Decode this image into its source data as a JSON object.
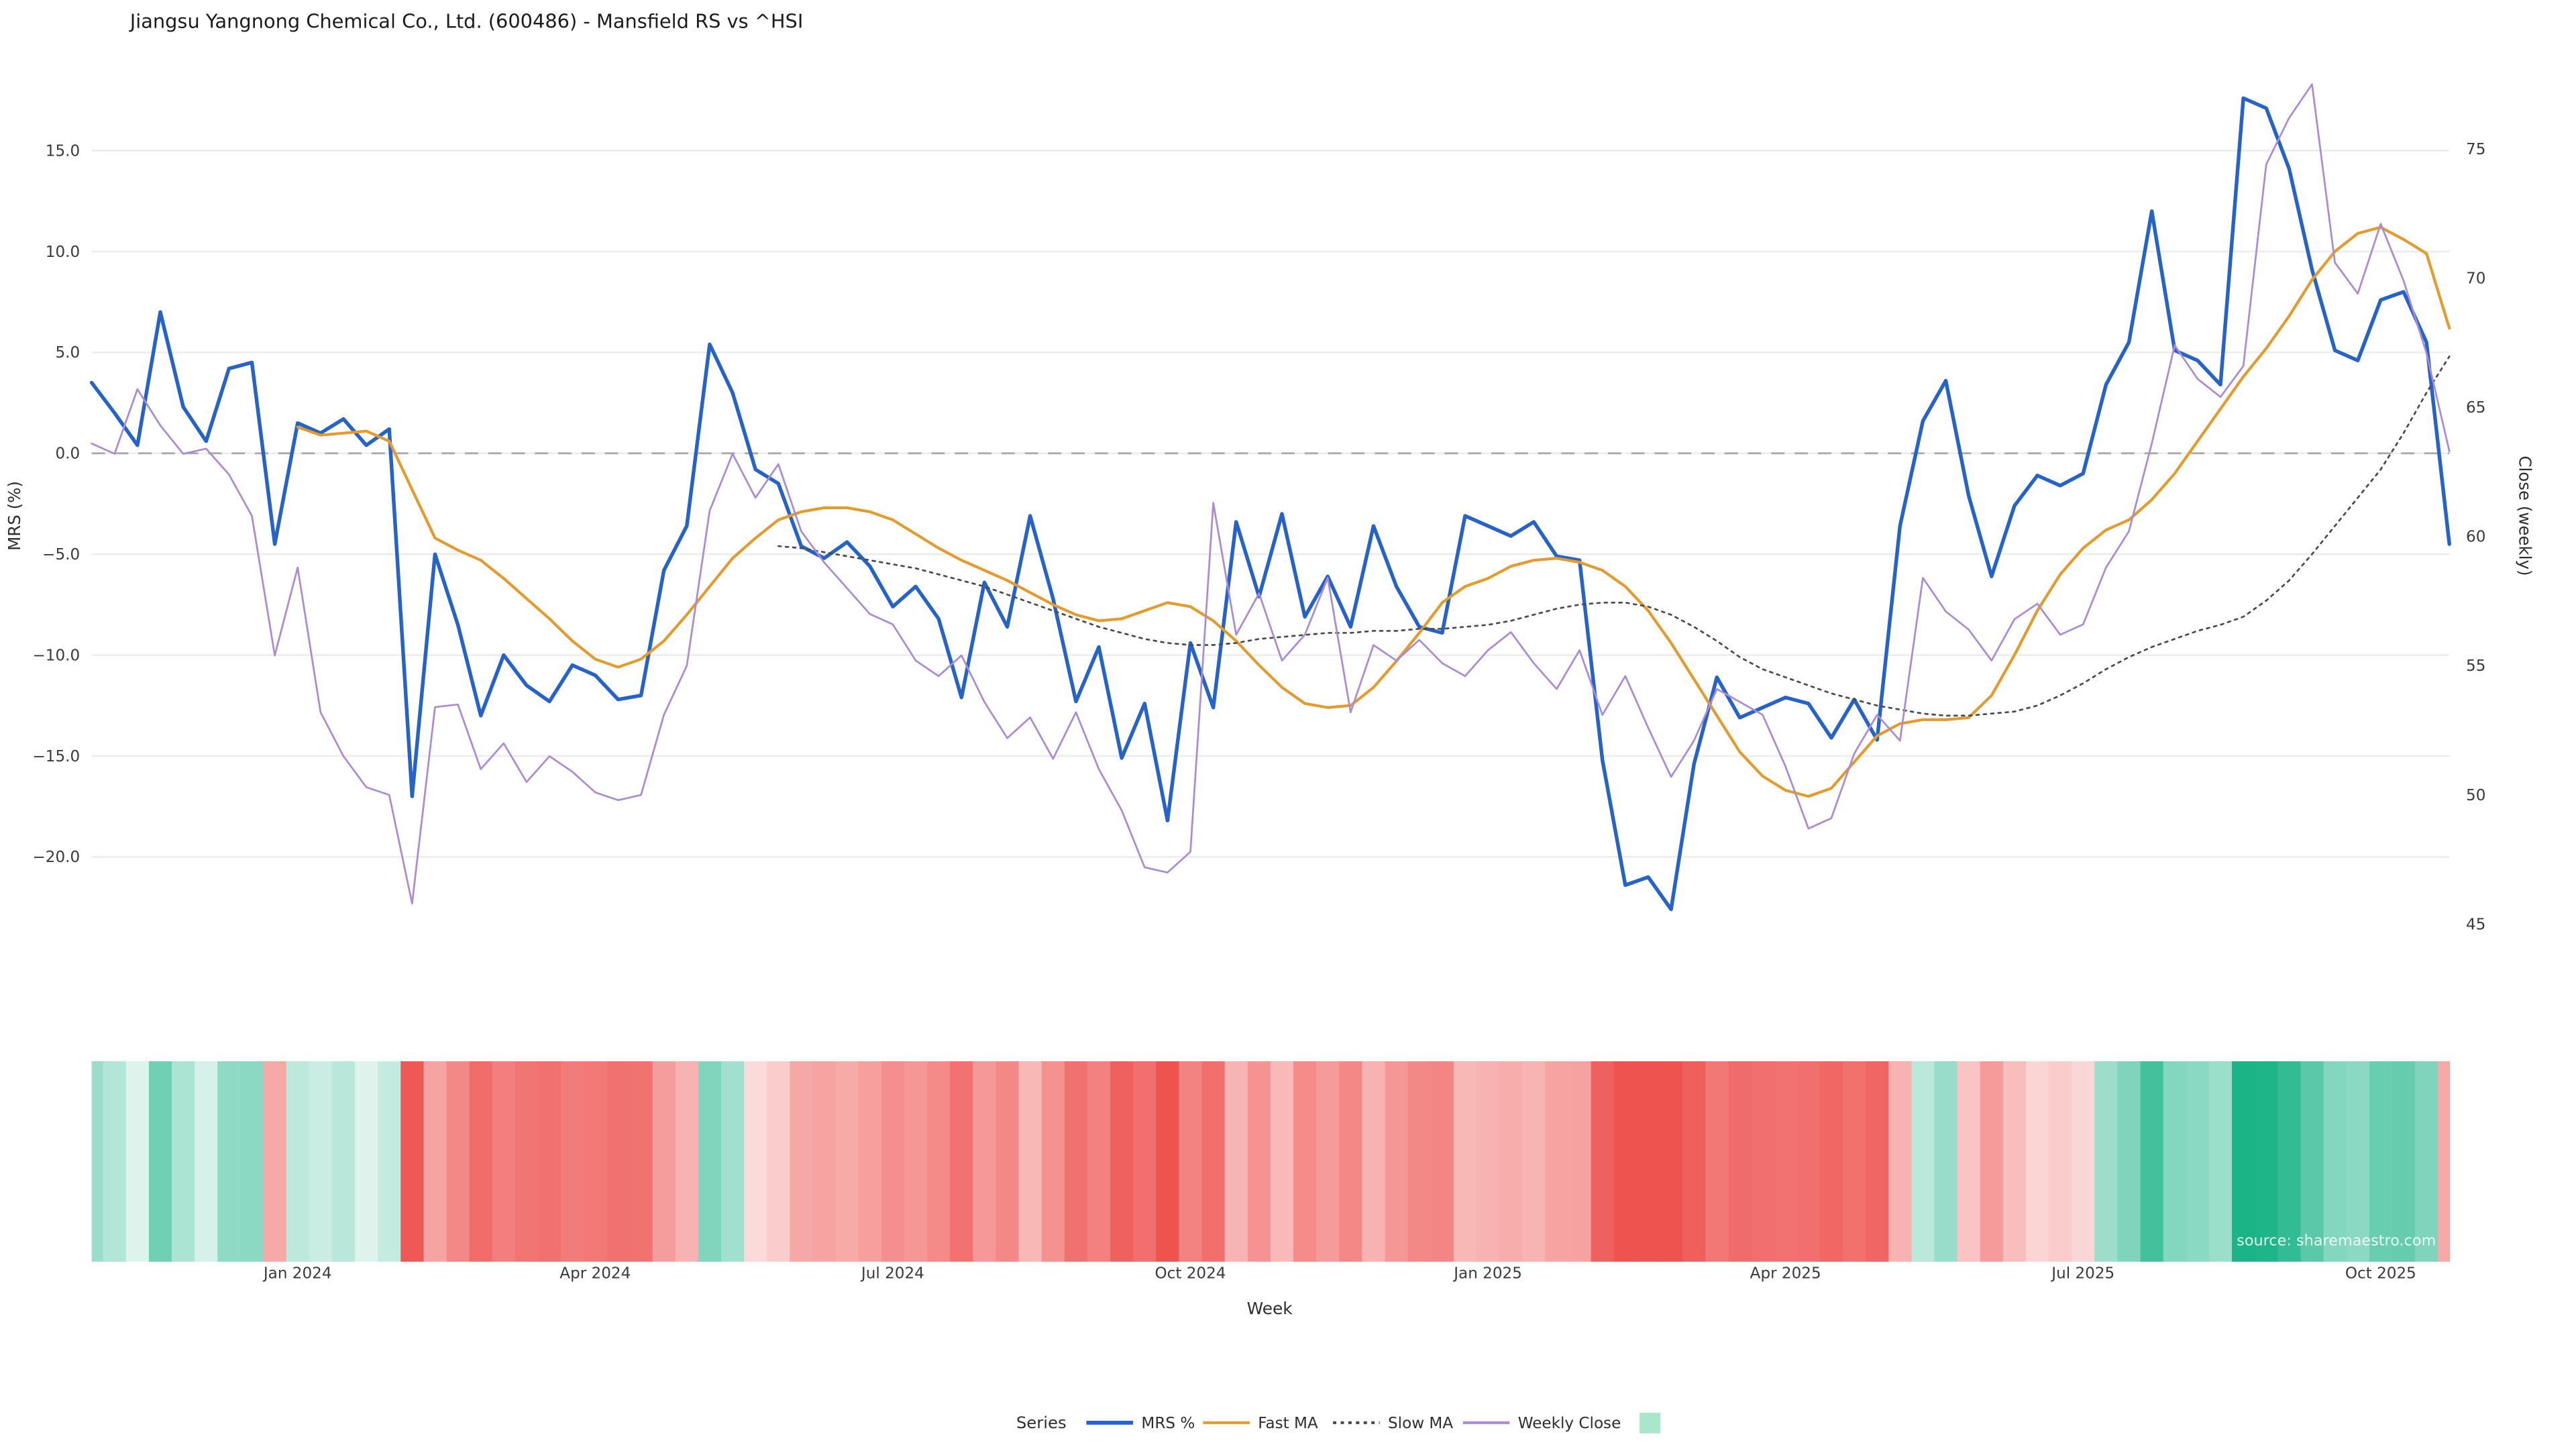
{
  "title": "Jiangsu Yangnong Chemical Co., Ltd. (600486) - Mansfield RS vs ^HSI",
  "source": "source: sharemaestro.com",
  "axes": {
    "x_label": "Week",
    "y_left_label": "MRS (%)",
    "y_right_label": "Close (weekly)",
    "y_left_ticks": [
      {
        "value": 15.0,
        "label": "15.0"
      },
      {
        "value": 10.0,
        "label": "10.0"
      },
      {
        "value": 5.0,
        "label": "5.0"
      },
      {
        "value": 0.0,
        "label": "0.0"
      },
      {
        "value": -5.0,
        "label": "−5.0"
      },
      {
        "value": -10.0,
        "label": "−10.0"
      },
      {
        "value": -15.0,
        "label": "−15.0"
      },
      {
        "value": -20.0,
        "label": "−20.0"
      }
    ],
    "y_right_ticks": [
      {
        "value": 75,
        "label": "75"
      },
      {
        "value": 70,
        "label": "70"
      },
      {
        "value": 65,
        "label": "65"
      },
      {
        "value": 60,
        "label": "60"
      },
      {
        "value": 55,
        "label": "55"
      },
      {
        "value": 50,
        "label": "50"
      },
      {
        "value": 45,
        "label": "45"
      }
    ],
    "x_ticks": [
      {
        "index": 9,
        "label": "Jan 2024"
      },
      {
        "index": 22,
        "label": "Apr 2024"
      },
      {
        "index": 35,
        "label": "Jul 2024"
      },
      {
        "index": 48,
        "label": "Oct 2024"
      },
      {
        "index": 61,
        "label": "Jan 2025"
      },
      {
        "index": 74,
        "label": "Apr 2025"
      },
      {
        "index": 87,
        "label": "Jul 2025"
      },
      {
        "index": 100,
        "label": "Oct 2025"
      }
    ]
  },
  "legend": {
    "title": "Series",
    "items": [
      {
        "label": "MRS %",
        "swatch": "line",
        "color": "#2563c9"
      },
      {
        "label": "Fast MA",
        "swatch": "line",
        "color": "#e39b2d"
      },
      {
        "label": "Slow MA",
        "swatch": "dotted-line",
        "color": "#4a4a4a"
      },
      {
        "label": "Weekly Close",
        "swatch": "line",
        "color": "#a98cd5"
      },
      {
        "label": "",
        "swatch": "square",
        "color": "#a9e6cb"
      }
    ]
  },
  "chart_data": {
    "type": "line",
    "x_unit": "week_index",
    "n_weeks": 104,
    "y_left_range": [
      -25,
      18.8
    ],
    "y_right_range": [
      43.7,
      77.9
    ],
    "zero_line": true,
    "grid": true,
    "legend_position": "bottom-center",
    "series": [
      {
        "name": "MRS %",
        "axis": "left",
        "color": "#2563c9",
        "style": "solid",
        "width": 2.2,
        "values": [
          3.5,
          2.0,
          0.4,
          7.0,
          2.3,
          0.6,
          4.2,
          4.5,
          -4.5,
          1.5,
          1.0,
          1.7,
          0.4,
          1.2,
          -17.0,
          -5.0,
          -8.5,
          -13.0,
          -10.0,
          -11.5,
          -12.3,
          -10.5,
          -11.0,
          -12.2,
          -12.0,
          -5.8,
          -3.6,
          5.4,
          3.0,
          -0.8,
          -1.5,
          -4.6,
          -5.2,
          -4.4,
          -5.6,
          -7.6,
          -6.6,
          -8.2,
          -12.1,
          -6.4,
          -8.6,
          -3.1,
          -7.2,
          -12.3,
          -9.6,
          -15.1,
          -12.4,
          -18.2,
          -9.4,
          -12.6,
          -3.4,
          -7.1,
          -3.0,
          -8.1,
          -6.1,
          -8.6,
          -3.6,
          -6.6,
          -8.6,
          -8.9,
          -3.1,
          -3.6,
          -4.1,
          -3.4,
          -5.1,
          -5.3,
          -15.2,
          -21.4,
          -21.0,
          -22.6,
          -15.4,
          -11.1,
          -13.1,
          -12.6,
          -12.1,
          -12.4,
          -14.1,
          -12.2,
          -14.2,
          -3.6,
          1.6,
          3.6,
          -2.1,
          -6.1,
          -2.6,
          -1.1,
          -1.6,
          -1.0,
          3.4,
          5.5,
          12.0,
          5.1,
          4.6,
          3.4,
          17.6,
          17.1,
          14.1,
          9.1,
          5.1,
          4.6,
          7.6,
          8.0,
          5.5,
          -4.5
        ]
      },
      {
        "name": "Fast MA",
        "axis": "left",
        "color": "#e39b2d",
        "style": "solid",
        "width": 1.7,
        "values": [
          null,
          null,
          null,
          null,
          null,
          null,
          null,
          null,
          null,
          1.3,
          0.9,
          1.0,
          1.1,
          0.6,
          -1.8,
          -4.2,
          -4.8,
          -5.3,
          -6.2,
          -7.2,
          -8.2,
          -9.3,
          -10.2,
          -10.6,
          -10.2,
          -9.3,
          -8.0,
          -6.6,
          -5.2,
          -4.2,
          -3.3,
          -2.9,
          -2.7,
          -2.7,
          -2.9,
          -3.3,
          -4.0,
          -4.7,
          -5.3,
          -5.8,
          -6.3,
          -6.9,
          -7.5,
          -8.0,
          -8.3,
          -8.2,
          -7.8,
          -7.4,
          -7.6,
          -8.3,
          -9.3,
          -10.5,
          -11.6,
          -12.4,
          -12.6,
          -12.5,
          -11.6,
          -10.3,
          -8.9,
          -7.4,
          -6.6,
          -6.2,
          -5.6,
          -5.3,
          -5.2,
          -5.4,
          -5.8,
          -6.6,
          -7.8,
          -9.4,
          -11.2,
          -13.0,
          -14.8,
          -16.0,
          -16.7,
          -17.0,
          -16.6,
          -15.3,
          -14.0,
          -13.4,
          -13.2,
          -13.2,
          -13.1,
          -12.0,
          -10.0,
          -7.8,
          -6.0,
          -4.7,
          -3.8,
          -3.3,
          -2.3,
          -1.0,
          0.6,
          2.2,
          3.8,
          5.2,
          6.8,
          8.6,
          10.0,
          10.9,
          11.2,
          10.6,
          9.9,
          6.2
        ]
      },
      {
        "name": "Slow MA",
        "axis": "left",
        "color": "#4a4a4a",
        "style": "dotted",
        "width": 1.1,
        "values": [
          null,
          null,
          null,
          null,
          null,
          null,
          null,
          null,
          null,
          null,
          null,
          null,
          null,
          null,
          null,
          null,
          null,
          null,
          null,
          null,
          null,
          null,
          null,
          null,
          null,
          null,
          null,
          null,
          null,
          null,
          -4.6,
          -4.7,
          -4.9,
          -5.1,
          -5.3,
          -5.5,
          -5.7,
          -6.0,
          -6.3,
          -6.6,
          -7.0,
          -7.4,
          -7.8,
          -8.2,
          -8.6,
          -8.9,
          -9.2,
          -9.4,
          -9.5,
          -9.5,
          -9.4,
          -9.2,
          -9.1,
          -9.0,
          -8.9,
          -8.9,
          -8.8,
          -8.8,
          -8.7,
          -8.7,
          -8.6,
          -8.5,
          -8.3,
          -8.0,
          -7.7,
          -7.5,
          -7.4,
          -7.4,
          -7.6,
          -8.0,
          -8.6,
          -9.3,
          -10.1,
          -10.7,
          -11.1,
          -11.5,
          -11.9,
          -12.2,
          -12.5,
          -12.7,
          -12.9,
          -13.0,
          -13.0,
          -12.9,
          -12.8,
          -12.5,
          -12.0,
          -11.4,
          -10.7,
          -10.1,
          -9.6,
          -9.2,
          -8.8,
          -8.5,
          -8.1,
          -7.3,
          -6.3,
          -5.0,
          -3.6,
          -2.2,
          -0.8,
          1.0,
          3.0,
          4.8
        ]
      },
      {
        "name": "Weekly Close",
        "axis": "right",
        "color": "#a98cd5",
        "style": "solid",
        "width": 1.1,
        "values": [
          63.6,
          63.2,
          65.7,
          64.3,
          63.2,
          63.4,
          62.4,
          60.8,
          55.4,
          58.8,
          53.2,
          51.5,
          50.3,
          50.0,
          45.8,
          53.4,
          53.5,
          51.0,
          52.0,
          50.5,
          51.5,
          50.9,
          50.1,
          49.8,
          50.0,
          53.1,
          55.0,
          61.0,
          63.2,
          61.5,
          62.8,
          60.2,
          59.0,
          58.0,
          57.0,
          56.6,
          55.2,
          54.6,
          55.4,
          53.6,
          52.2,
          53.0,
          51.4,
          53.2,
          51.0,
          49.4,
          47.2,
          47.0,
          47.8,
          61.3,
          56.2,
          57.8,
          55.2,
          56.2,
          58.4,
          53.2,
          55.8,
          55.2,
          56.0,
          55.1,
          54.6,
          55.6,
          56.3,
          55.1,
          54.1,
          55.6,
          53.1,
          54.6,
          52.6,
          50.7,
          52.1,
          54.1,
          53.6,
          53.1,
          51.1,
          48.7,
          49.1,
          51.6,
          53.1,
          52.1,
          58.4,
          57.1,
          56.4,
          55.2,
          56.8,
          57.4,
          56.2,
          56.6,
          58.8,
          60.2,
          63.6,
          67.4,
          66.1,
          65.4,
          66.6,
          74.4,
          76.2,
          77.5,
          70.6,
          69.4,
          72.1,
          69.9,
          67.1,
          63.3
        ]
      }
    ],
    "heatmap": {
      "derived_from": "MRS %",
      "positive_color": "#18b386",
      "negative_color": "#ee5350",
      "scale_max": 18
    }
  }
}
